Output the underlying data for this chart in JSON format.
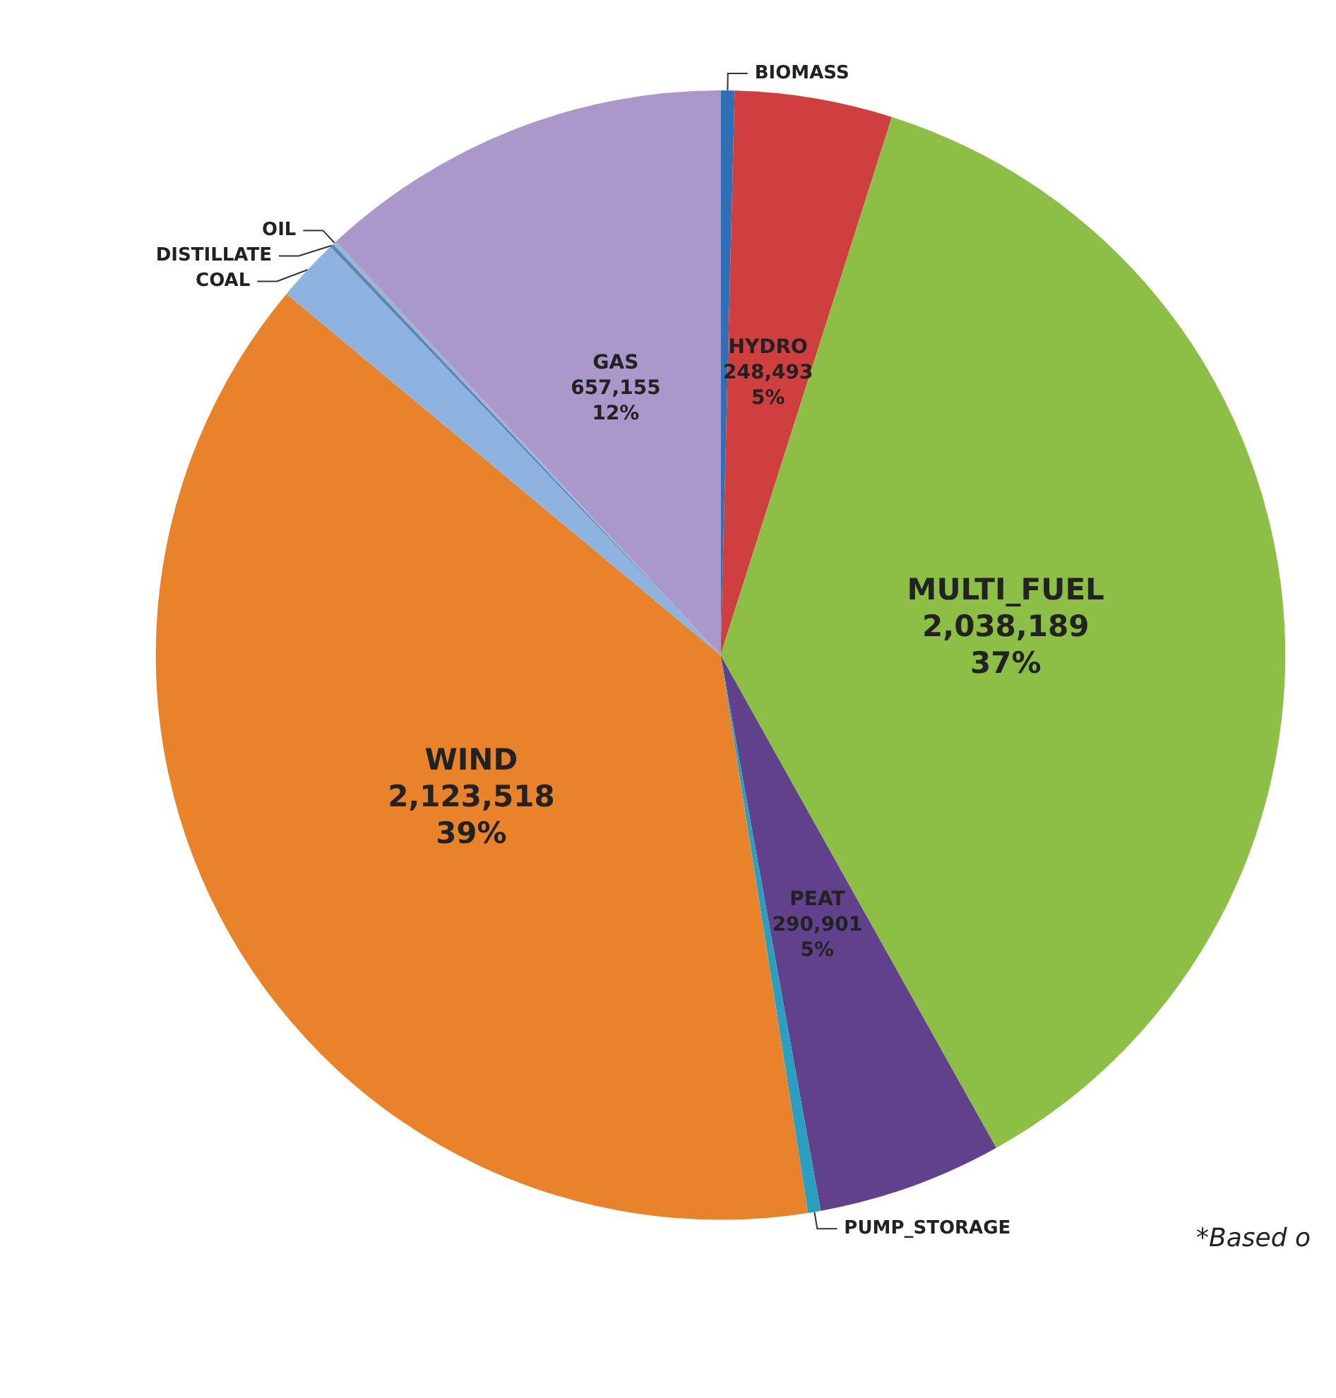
{
  "chart_data": {
    "type": "pie",
    "categories": [
      "BIOMASS",
      "HYDRO",
      "MULTI_FUEL",
      "PEAT",
      "PUMP_STORAGE",
      "WIND",
      "COAL",
      "DISTILLATE",
      "OIL",
      "GAS"
    ],
    "values": [
      22000,
      248493,
      2038189,
      290901,
      20000,
      2123518,
      100000,
      6000,
      6000,
      657155
    ],
    "value_labels": [
      null,
      "248,493\n5%",
      "2,038,189\n37%",
      "290,901\n5%",
      null,
      "2,123,518\n39%",
      null,
      null,
      null,
      "657,155\n12%"
    ],
    "colors": [
      "#2f6fb8",
      "#cf3f3f",
      "#8dbe45",
      "#61418c",
      "#2a9fc0",
      "#e8832c",
      "#8fb3e0",
      "#5b86b8",
      "#9db4d4",
      "#a998c9"
    ],
    "annotations": [
      "*Based o"
    ],
    "legend": false
  }
}
